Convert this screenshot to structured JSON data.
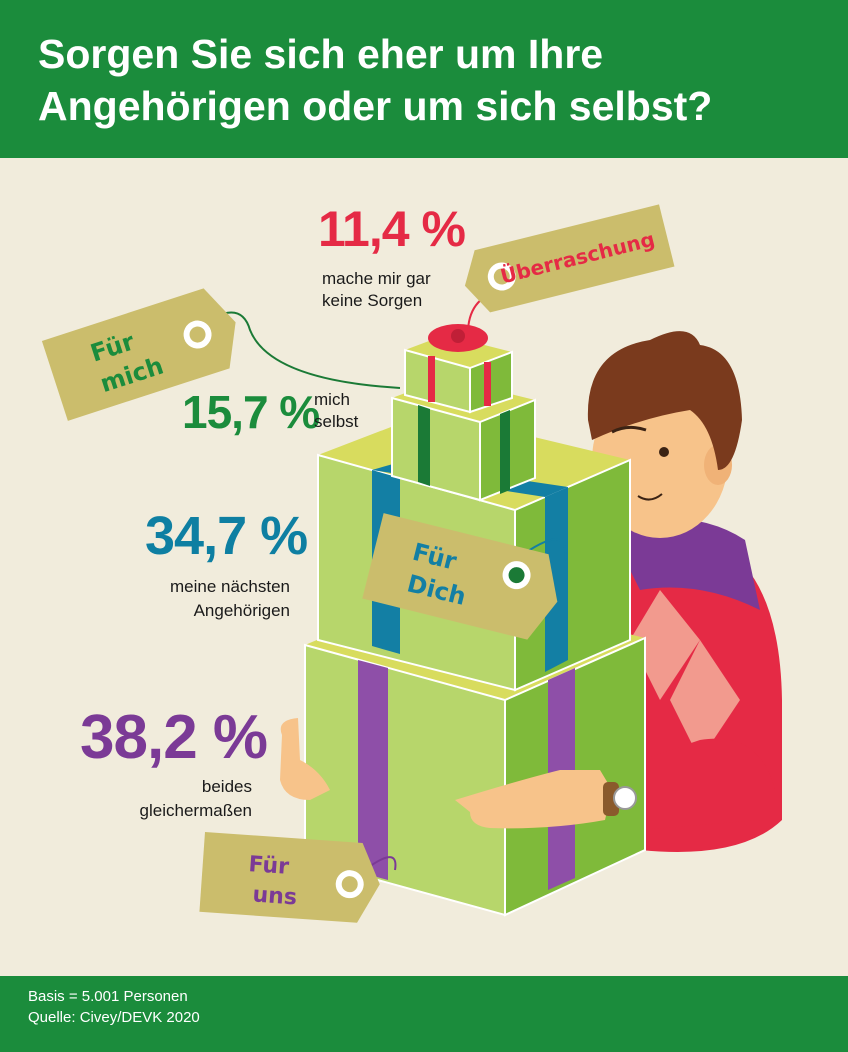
{
  "title": "Sorgen Sie sich eher um Ihre Angehörigen oder um sich selbst?",
  "footer": {
    "basis": "Basis = 5.001 Personen",
    "source": "Quelle: Civey/DEVK 2020"
  },
  "tags": {
    "surprise": "Überraschung",
    "me_line1": "Für",
    "me_line2": "mich",
    "you_line1": "Für",
    "you_line2": "Dich",
    "us_line1": "Für",
    "us_line2": "uns"
  },
  "colors": {
    "header_green": "#1b8c3c",
    "red": "#e52a45",
    "green": "#1b8c3c",
    "blue": "#0e7fa2",
    "purple": "#7b3a96",
    "box_green": "#8bc34a",
    "box_light": "#b7d66b",
    "tag": "#cbbd6c"
  },
  "chart_data": {
    "type": "table",
    "unit": "%",
    "rows": [
      {
        "value": 11.4,
        "display": "11,4 %",
        "label_line1": "mache mir gar",
        "label_line2": "keine Sorgen",
        "color": "#e52a45"
      },
      {
        "value": 15.7,
        "display": "15,7 %",
        "label_line1": "mich",
        "label_line2": "selbst",
        "color": "#1b8c3c"
      },
      {
        "value": 34.7,
        "display": "34,7 %",
        "label_line1": "meine nächsten",
        "label_line2": "Angehörigen",
        "color": "#0e7fa2"
      },
      {
        "value": 38.2,
        "display": "38,2 %",
        "label_line1": "beides",
        "label_line2": "gleichermaßen",
        "color": "#7b3a96"
      }
    ]
  }
}
